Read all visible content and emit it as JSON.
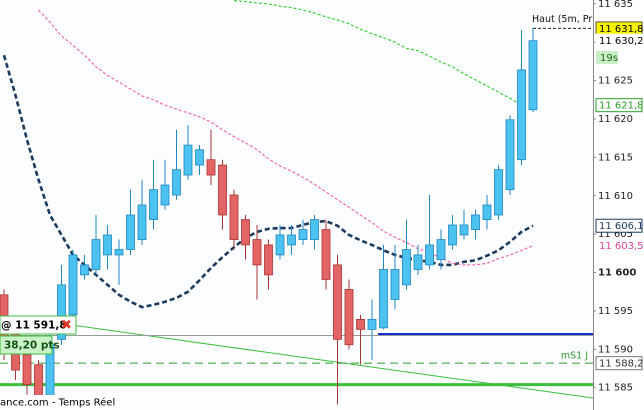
{
  "chart_data": {
    "type": "candlestick",
    "ylim": [
      11582.1,
      11635.5
    ],
    "yticks": [
      {
        "value": 11585,
        "label": "11 585"
      },
      {
        "value": 11590,
        "label": "11 590"
      },
      {
        "value": 11595,
        "label": "11 595"
      },
      {
        "value": 11600,
        "label": "11 600",
        "bold": true
      },
      {
        "value": 11605,
        "label": "11 605"
      },
      {
        "value": 11610,
        "label": "11 610"
      },
      {
        "value": 11615,
        "label": "11 615"
      },
      {
        "value": 11620,
        "label": "11 620"
      },
      {
        "value": 11625,
        "label": "11 625"
      },
      {
        "value": 11630,
        "label": "11 630"
      },
      {
        "value": 11635,
        "label": "11 635"
      }
    ],
    "up_color": "#4cc2f0",
    "up_edge": "#1f87c4",
    "down_color": "#e36464",
    "down_edge": "#a93434",
    "open": [
      11597.1,
      11592.6,
      11589.3,
      11588.0,
      11583.7,
      11591.3,
      11594.5,
      11599.7,
      11600.4,
      11602.3,
      11602.3,
      11603.0,
      11604.3,
      11606.9,
      11608.8,
      11610.1,
      11612.7,
      11614.0,
      11614.7,
      11614.0,
      11610.1,
      11606.9,
      11604.3,
      11603.6,
      11602.3,
      11603.6,
      11604.3,
      11604.3,
      11605.6,
      11601.0,
      11597.8,
      11593.9,
      11592.6,
      11592.8,
      11596.5,
      11598.4,
      11600.4,
      11601.0,
      11601.7,
      11603.6,
      11604.9,
      11605.6,
      11606.9,
      11607.5,
      11610.8,
      11614.7,
      11621.2
    ],
    "high": [
      11597.8,
      11593.9,
      11590.6,
      11588.6,
      11591.9,
      11601.0,
      11603.0,
      11602.3,
      11607.5,
      11606.2,
      11604.3,
      11610.8,
      11612.1,
      11614.7,
      11614.7,
      11618.6,
      11619.2,
      11616.6,
      11618.6,
      11614.7,
      11610.8,
      11607.5,
      11606.2,
      11604.3,
      11606.2,
      11606.2,
      11606.9,
      11607.5,
      11606.9,
      11602.3,
      11599.1,
      11594.5,
      11596.5,
      11603.6,
      11603.6,
      11606.9,
      11603.6,
      11610.1,
      11605.6,
      11607.5,
      11608.2,
      11608.2,
      11610.1,
      11614.0,
      11620.5,
      11631.6,
      11631.9
    ],
    "low": [
      11588.6,
      11586.0,
      11584.1,
      11582.8,
      11583.4,
      11590.6,
      11593.9,
      11599.1,
      11599.7,
      11600.4,
      11598.4,
      11602.3,
      11603.6,
      11605.6,
      11608.2,
      11609.5,
      11612.1,
      11612.7,
      11611.4,
      11605.6,
      11603.0,
      11601.7,
      11596.5,
      11597.8,
      11601.7,
      11602.3,
      11603.6,
      11603.0,
      11597.8,
      11582.8,
      11590.0,
      11588.0,
      11588.6,
      11592.6,
      11595.2,
      11597.8,
      11599.7,
      11600.4,
      11600.4,
      11603.0,
      11604.3,
      11604.3,
      11605.6,
      11606.9,
      11610.1,
      11614.0,
      11620.9
    ],
    "close": [
      11590.6,
      11587.3,
      11585.4,
      11583.4,
      11590.6,
      11598.4,
      11602.3,
      11601.0,
      11604.3,
      11604.9,
      11603.0,
      11607.5,
      11608.8,
      11610.8,
      11611.4,
      11613.4,
      11616.6,
      11616.0,
      11612.7,
      11607.5,
      11604.3,
      11603.6,
      11601.0,
      11599.7,
      11604.9,
      11604.9,
      11605.6,
      11606.9,
      11599.1,
      11591.3,
      11590.6,
      11592.6,
      11593.9,
      11600.4,
      11600.4,
      11603.0,
      11602.3,
      11603.6,
      11604.3,
      11606.2,
      11606.2,
      11607.5,
      11608.8,
      11613.4,
      11619.9,
      11626.4,
      11630.2
    ],
    "indicators": [
      {
        "color": "#1b3a5c",
        "width": 2.6,
        "dash": "5,3",
        "values": [
          11628.3,
          11623.1,
          11617.3,
          11612.1,
          11607.5,
          11604.9,
          11602.3,
          11601.0,
          11599.7,
          11598.4,
          11597.1,
          11596.2,
          11595.5,
          11595.8,
          11596.2,
          11596.7,
          11597.5,
          11599.0,
          11600.6,
          11602.0,
          11603.3,
          11604.5,
          11605.3,
          11605.7,
          11605.8,
          11605.8,
          11606.2,
          11606.6,
          11606.7,
          11606.1,
          11604.9,
          11604.2,
          11603.6,
          11602.9,
          11602.3,
          11601.9,
          11601.6,
          11601.4,
          11601.0,
          11601.0,
          11601.4,
          11601.6,
          11602.2,
          11602.9,
          11604.0,
          11605.3,
          11606.1
        ]
      },
      {
        "color": "#f06ab0",
        "width": 1.2,
        "dash": "3,2",
        "values": [
          null,
          null,
          null,
          11634.2,
          11632.6,
          11630.8,
          11629.6,
          11628.3,
          11626.8,
          11625.7,
          11624.8,
          11623.9,
          11623.0,
          11622.5,
          11621.8,
          11621.3,
          11620.8,
          11620.3,
          11619.6,
          11618.6,
          11617.7,
          11616.9,
          11616.0,
          11614.8,
          11613.9,
          11613.2,
          11612.4,
          11611.5,
          11610.5,
          11609.5,
          11608.5,
          11607.5,
          11606.5,
          11605.4,
          11604.6,
          11603.9,
          11603.1,
          11602.6,
          11601.9,
          11601.2,
          11601.0,
          11601.0,
          11601.2,
          11601.8,
          11602.3,
          11602.9,
          11603.5
        ]
      },
      {
        "color": "#3ccf3c",
        "width": 1.2,
        "dash": "3,2",
        "values": [
          null,
          null,
          null,
          null,
          null,
          null,
          null,
          null,
          null,
          null,
          null,
          null,
          null,
          null,
          null,
          null,
          null,
          null,
          null,
          null,
          11635.4,
          11635.3,
          11635.1,
          11635.0,
          11634.7,
          11634.5,
          11634.2,
          11633.8,
          11633.3,
          11632.9,
          11632.4,
          11631.7,
          11631.1,
          11630.6,
          11630.0,
          11629.2,
          11628.9,
          11628.2,
          11627.4,
          11626.8,
          11625.9,
          11625.1,
          11624.3,
          11623.5,
          11622.7,
          11621.8,
          null
        ]
      }
    ],
    "levels": [
      {
        "value": 11591.8,
        "color": "#9a9a9a",
        "width": 1,
        "dash": "none"
      },
      {
        "value": 11592.0,
        "color": "#1030d0",
        "width": 2,
        "dash": "none"
      },
      {
        "value": 11588.2,
        "color": "#2e9a2e",
        "width": 1,
        "dash": "8,5",
        "label": "mS1 J"
      },
      {
        "value": 11585.4,
        "color": "#3cbf3c",
        "width": 3,
        "dash": "none"
      },
      {
        "value": 11631.8,
        "color": "#222222",
        "width": 1,
        "dash": "3,2",
        "label": "Haut (5m, Pr"
      }
    ],
    "price_tags": [
      {
        "value": 11631.8,
        "label": "11 631,8",
        "bg": "#f7f200",
        "fg": "#000000",
        "border": "#555555"
      },
      {
        "value": 11630.2,
        "label": "11 630,2",
        "bg": "#ffffff",
        "fg": "#000000",
        "border": "#ffffff"
      },
      {
        "value": 11621.8,
        "label": "11 621,8",
        "bg": "#ffffff",
        "fg": "#2aa02a",
        "border": "#2aa02a"
      },
      {
        "value": 11606.1,
        "label": "11 606,1",
        "bg": "#ffffff",
        "fg": "#1b3a5c",
        "border": "#1b3a5c"
      },
      {
        "value": 11603.5,
        "label": "11 603,5",
        "bg": "#ffffff",
        "fg": "#e0459a",
        "border": "#ffffff"
      },
      {
        "value": 11588.2,
        "label": "11 588,2",
        "bg": "#ffffff",
        "fg": "#333333",
        "border": "#777777"
      }
    ],
    "countdown": "19s",
    "order": {
      "label": "@ 11 591,8",
      "pts": "38,20 pts"
    },
    "source": "ance.com - Temps Réel"
  }
}
